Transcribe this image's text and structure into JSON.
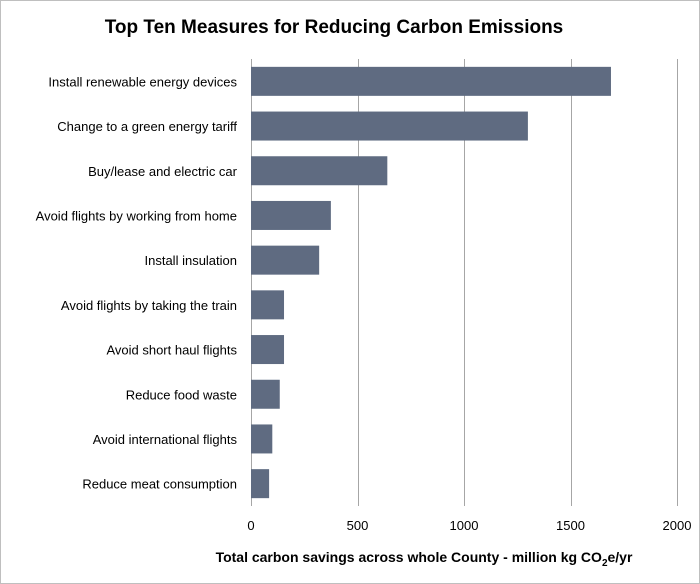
{
  "chart_data": {
    "type": "bar",
    "orientation": "horizontal",
    "title": "Top Ten Measures for Reducing Carbon Emissions",
    "xlabel": {
      "prefix": "Total carbon savings across whole County - million kg CO",
      "subscript": "2",
      "suffix": "e/yr"
    },
    "ylabel": "",
    "categories": [
      "Install renewable energy devices",
      "Change to a green energy tariff",
      "Buy/lease and electric car",
      "Avoid flights by working from home",
      "Install insulation",
      "Avoid flights by taking the train",
      "Avoid short haul flights",
      "Reduce food waste",
      "Avoid international flights",
      "Reduce meat consumption"
    ],
    "values": [
      1690,
      1300,
      640,
      375,
      320,
      155,
      155,
      135,
      100,
      85
    ],
    "xlim": [
      0,
      2000
    ],
    "xticks": [
      "0",
      "500",
      "1000",
      "1500",
      "2000"
    ],
    "grid": "vertical",
    "bar_color": "#5f6b81",
    "grid_color": "#a6a6a6"
  }
}
